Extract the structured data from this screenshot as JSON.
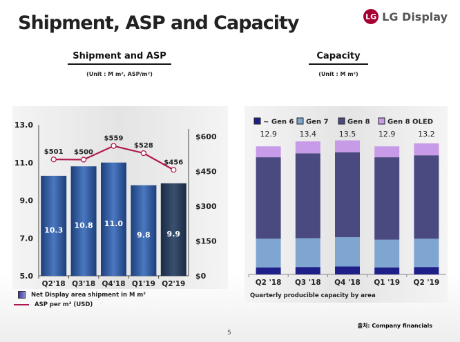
{
  "title": "Shipment, ASP and Capacity",
  "logo": {
    "mark": "LG",
    "text": "LG Display"
  },
  "left": {
    "heading": "Shipment and ASP",
    "unit": "(Unit : M m², ASP/m²)",
    "legend_bar": "Net Display area shipment in M m²",
    "legend_line": "ASP per m² (USD)"
  },
  "right": {
    "heading": "Capacity",
    "unit": "(Unit : M m²)",
    "caption": "Quarterly producible capacity by area"
  },
  "source": "출처: Company financials",
  "page_number": "5",
  "chart_data": [
    {
      "type": "bar",
      "title": "Shipment and ASP",
      "categories": [
        "Q2'18",
        "Q3'18",
        "Q4'18",
        "Q1'19",
        "Q2'19"
      ],
      "series": [
        {
          "name": "Net Display area shipment in M m²",
          "axis": "left",
          "values": [
            10.3,
            10.8,
            11.0,
            9.8,
            9.9
          ],
          "labels": [
            "10.3",
            "10.8",
            "11.0",
            "9.8",
            "9.9"
          ],
          "color": "#2d5a9e"
        },
        {
          "name": "ASP per m² (USD)",
          "type": "line",
          "axis": "right",
          "values": [
            501,
            500,
            559,
            528,
            456
          ],
          "labels": [
            "$501",
            "$500",
            "$559",
            "$528",
            "$456"
          ],
          "color": "#b0164f"
        }
      ],
      "ylim": [
        5,
        13
      ],
      "yticks": [
        "13.0",
        "11.0",
        "9.0",
        "7.0",
        "5.0"
      ],
      "yticks_values": [
        13,
        11,
        9,
        7,
        5
      ],
      "y2lim": [
        0,
        650
      ],
      "y2ticks": [
        "$600",
        "$450",
        "$300",
        "$150",
        "$0"
      ],
      "y2ticks_values": [
        600,
        450,
        300,
        150,
        0
      ]
    },
    {
      "type": "bar",
      "stacked": true,
      "title": "Capacity",
      "categories": [
        "Q2 '18",
        "Q3 '18",
        "Q4 '18",
        "Q1 '19",
        "Q2 '19"
      ],
      "series": [
        {
          "name": "~ Gen 6",
          "values": [
            0.7,
            0.75,
            0.8,
            0.7,
            0.75
          ],
          "color": "#1f1f8a"
        },
        {
          "name": "Gen 7",
          "values": [
            2.9,
            2.9,
            2.95,
            2.8,
            2.85
          ],
          "color": "#7fa6d0"
        },
        {
          "name": "Gen 8",
          "values": [
            8.2,
            8.55,
            8.55,
            8.3,
            8.4
          ],
          "color": "#4a4a80"
        },
        {
          "name": "Gen 8 OLED",
          "values": [
            1.1,
            1.2,
            1.2,
            1.1,
            1.2
          ],
          "color": "#c79be8"
        }
      ],
      "totals": [
        "12.9",
        "13.4",
        "13.5",
        "12.9",
        "13.2"
      ],
      "ylim": [
        0,
        14
      ],
      "legend": "top"
    }
  ]
}
